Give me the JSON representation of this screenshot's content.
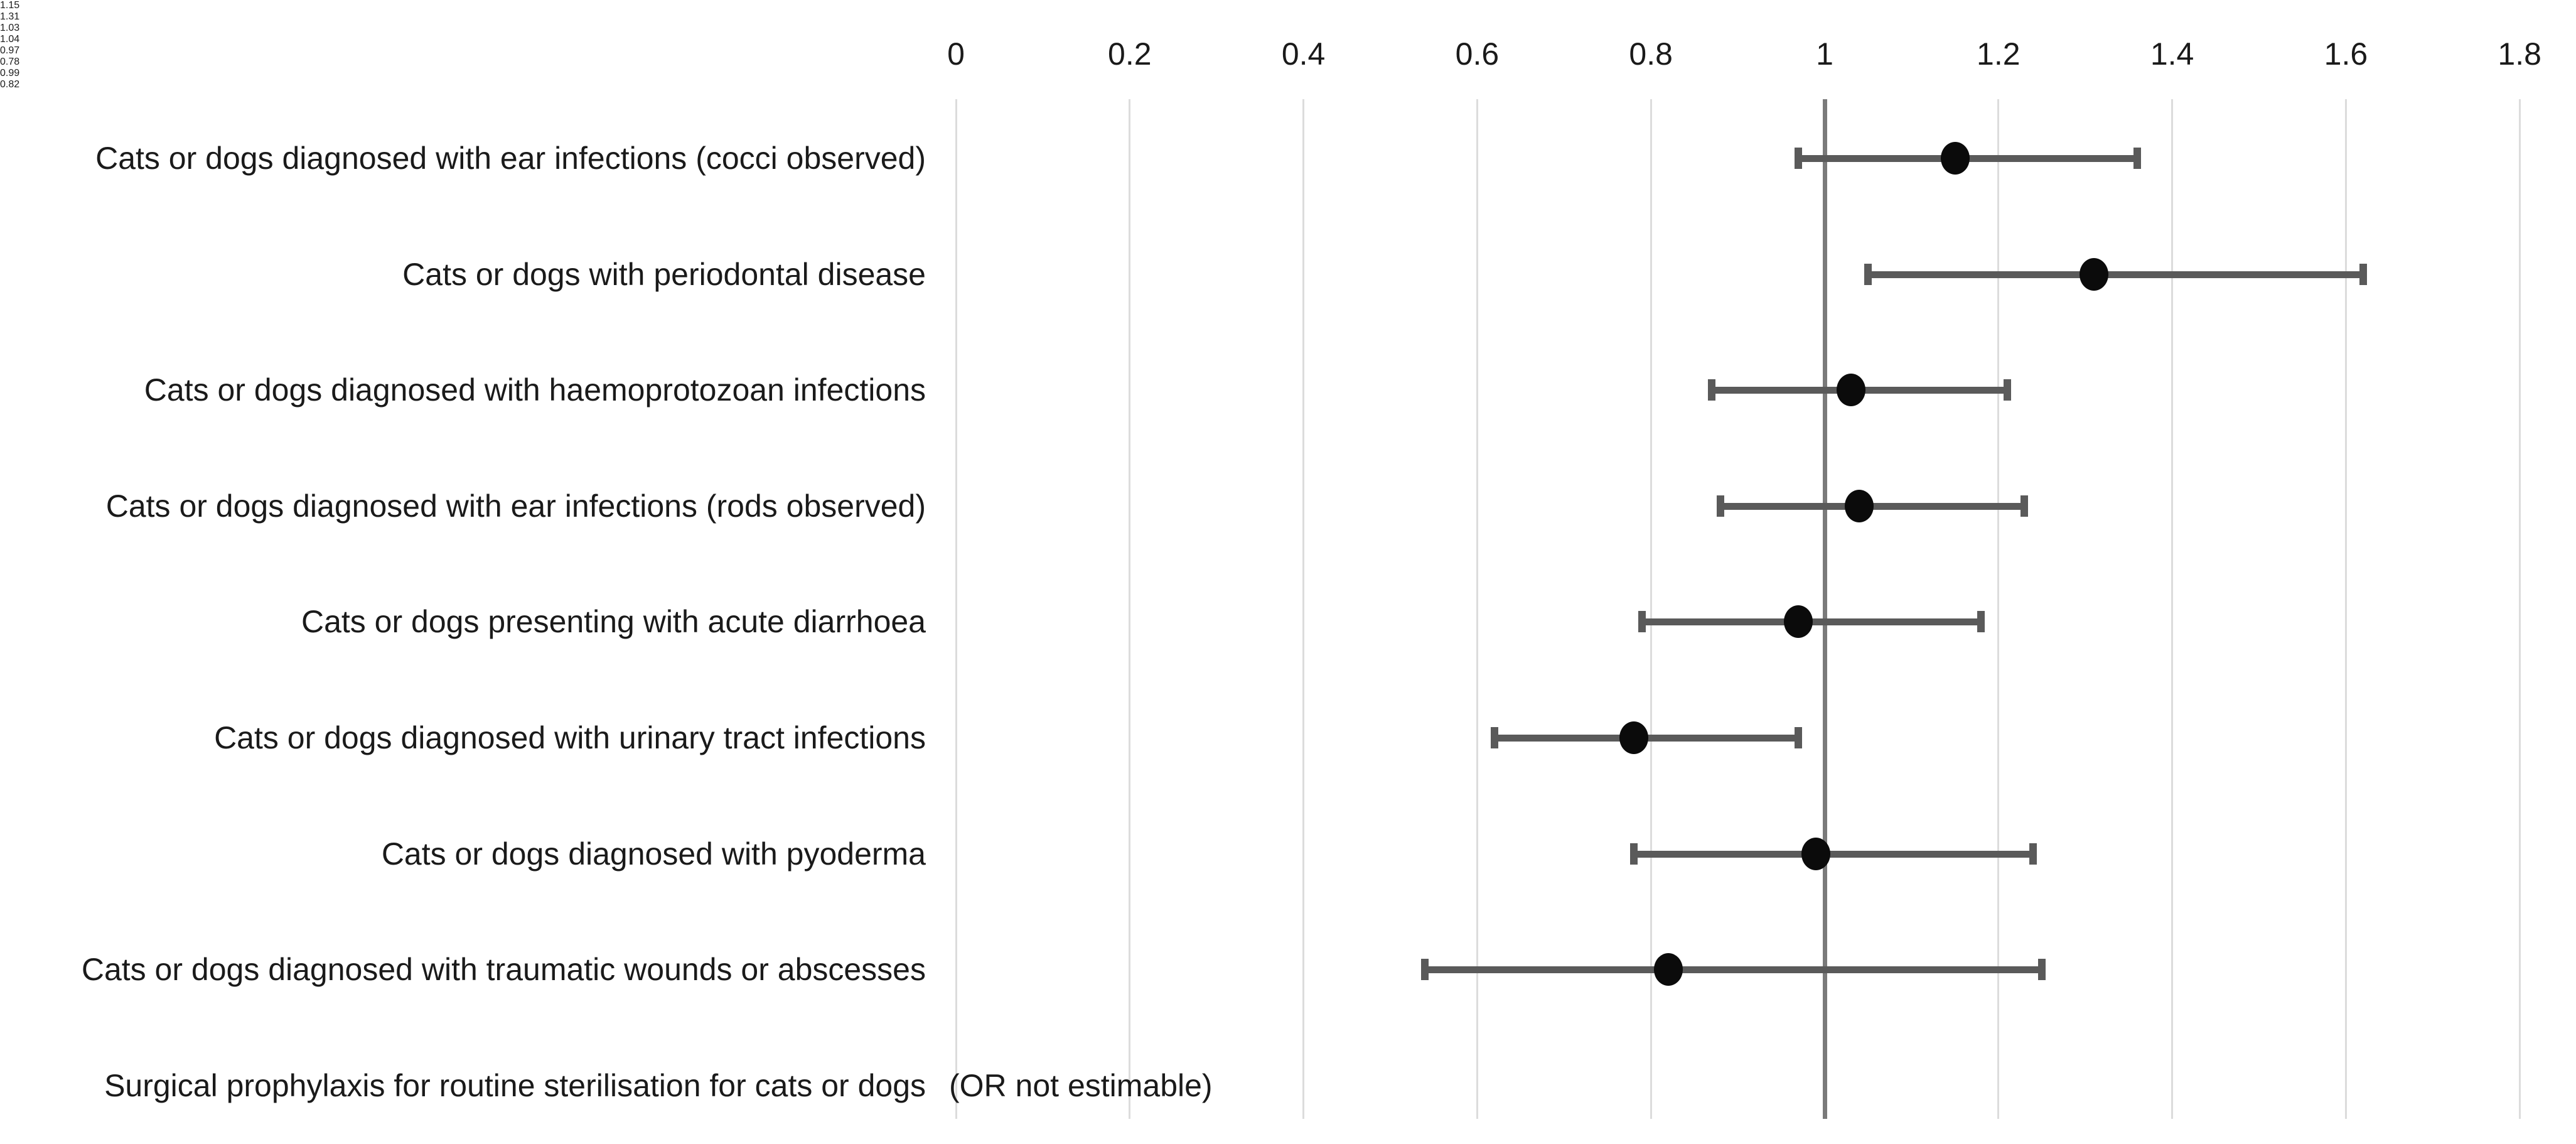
{
  "chart_data": {
    "type": "scatter",
    "subtype": "forest-plot",
    "title": "",
    "xlabel": "",
    "ylabel": "",
    "x_axis": {
      "position": "top",
      "min": 0,
      "max": 1.8,
      "grid": true,
      "reference_line": 1,
      "ticks": [
        {
          "value": 0,
          "label": "0"
        },
        {
          "value": 0.2,
          "label": "0.2"
        },
        {
          "value": 0.4,
          "label": "0.4"
        },
        {
          "value": 0.6,
          "label": "0.6"
        },
        {
          "value": 0.8,
          "label": "0.8"
        },
        {
          "value": 1,
          "label": "1"
        },
        {
          "value": 1.2,
          "label": "1.2"
        },
        {
          "value": 1.4,
          "label": "1.4"
        },
        {
          "value": 1.6,
          "label": "1.6"
        },
        {
          "value": 1.8,
          "label": "1.8"
        }
      ]
    },
    "rows": [
      {
        "label": "Cats or dogs diagnosed with ear infections (cocci observed)",
        "or": 1.15,
        "or_label": "1.15",
        "ci_low": 0.97,
        "ci_high": 1.36
      },
      {
        "label": "Cats or dogs with periodontal disease",
        "or": 1.31,
        "or_label": "1.31",
        "ci_low": 1.05,
        "ci_high": 1.62
      },
      {
        "label": "Cats or dogs diagnosed with haemoprotozoan infections",
        "or": 1.03,
        "or_label": "1.03",
        "ci_low": 0.87,
        "ci_high": 1.21
      },
      {
        "label": "Cats or dogs diagnosed with ear infections (rods observed)",
        "or": 1.04,
        "or_label": "1.04",
        "ci_low": 0.88,
        "ci_high": 1.23
      },
      {
        "label": "Cats or dogs presenting with acute diarrhoea",
        "or": 0.97,
        "or_label": "0.97",
        "ci_low": 0.79,
        "ci_high": 1.18
      },
      {
        "label": "Cats or dogs diagnosed with urinary tract infections",
        "or": 0.78,
        "or_label": "0.78",
        "ci_low": 0.62,
        "ci_high": 0.97
      },
      {
        "label": "Cats or dogs diagnosed with pyoderma",
        "or": 0.99,
        "or_label": "0.99",
        "ci_low": 0.78,
        "ci_high": 1.24
      },
      {
        "label": "Cats or dogs diagnosed with traumatic wounds or abscesses",
        "or": 0.82,
        "or_label": "0.82",
        "ci_low": 0.54,
        "ci_high": 1.25
      },
      {
        "label": "Surgical prophylaxis for routine sterilisation for cats or dogs",
        "or": null,
        "or_label": "",
        "ci_low": null,
        "ci_high": null,
        "note": "(OR not estimable)"
      }
    ],
    "colors": {
      "background": "#ffffff",
      "text": "#1a1a1a",
      "gridline": "#dcdcdc",
      "reference_line": "#7a7a7a",
      "error_bar": "#5a5a5a",
      "marker": "#0b0b0b"
    }
  }
}
